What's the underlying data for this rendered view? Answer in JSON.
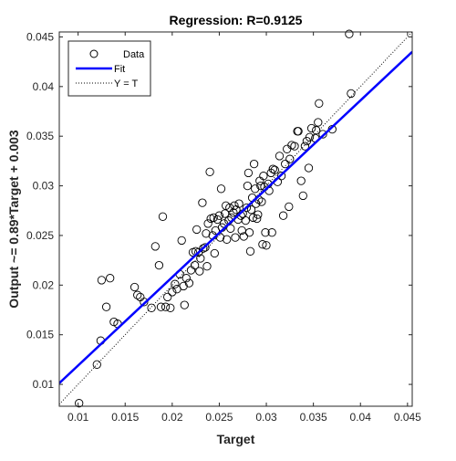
{
  "chart_data": {
    "type": "scatter",
    "title": "Regression: R=0.9125",
    "xlabel": "Target",
    "ylabel": "Output ~= 0.89*Target + 0.003",
    "xlim": [
      0.008,
      0.0455
    ],
    "ylim": [
      0.0078,
      0.0455
    ],
    "x_ticks": [
      0.01,
      0.015,
      0.02,
      0.025,
      0.03,
      0.035,
      0.04,
      0.045
    ],
    "x_tick_labels": [
      "0.01",
      "0.015",
      "0.02",
      "0.025",
      "0.03",
      "0.035",
      "0.04",
      "0.045"
    ],
    "y_ticks": [
      0.01,
      0.015,
      0.02,
      0.025,
      0.03,
      0.035,
      0.04,
      0.045
    ],
    "y_tick_labels": [
      "0.01",
      "0.015",
      "0.02",
      "0.025",
      "0.03",
      "0.035",
      "0.04",
      "0.045"
    ],
    "grid": false,
    "legend_position": "top-left",
    "legend": [
      {
        "label": "Data",
        "style": "circle",
        "color": "#000000"
      },
      {
        "label": "Fit",
        "style": "line",
        "color": "#0000ff"
      },
      {
        "label": "Y = T",
        "style": "dotted",
        "color": "#000000"
      }
    ],
    "fit": {
      "slope": 0.89,
      "intercept": 0.003,
      "color": "#0000ff"
    },
    "identity_color": "#000000",
    "points": [
      [
        0.0101,
        0.0081
      ],
      [
        0.012,
        0.012
      ],
      [
        0.0124,
        0.0144
      ],
      [
        0.0125,
        0.0205
      ],
      [
        0.013,
        0.0178
      ],
      [
        0.0134,
        0.0207
      ],
      [
        0.0138,
        0.0163
      ],
      [
        0.0142,
        0.0161
      ],
      [
        0.016,
        0.0198
      ],
      [
        0.0163,
        0.019
      ],
      [
        0.0166,
        0.0188
      ],
      [
        0.017,
        0.0183
      ],
      [
        0.0178,
        0.0177
      ],
      [
        0.0182,
        0.0239
      ],
      [
        0.0186,
        0.022
      ],
      [
        0.0188,
        0.0178
      ],
      [
        0.019,
        0.0269
      ],
      [
        0.0193,
        0.0178
      ],
      [
        0.0195,
        0.0188
      ],
      [
        0.0198,
        0.0177
      ],
      [
        0.02,
        0.0193
      ],
      [
        0.0203,
        0.0201
      ],
      [
        0.0205,
        0.0196
      ],
      [
        0.0208,
        0.0211
      ],
      [
        0.021,
        0.0245
      ],
      [
        0.0212,
        0.0199
      ],
      [
        0.0213,
        0.018
      ],
      [
        0.0215,
        0.0207
      ],
      [
        0.0218,
        0.0202
      ],
      [
        0.022,
        0.0215
      ],
      [
        0.0222,
        0.0233
      ],
      [
        0.0224,
        0.022
      ],
      [
        0.0225,
        0.0234
      ],
      [
        0.0226,
        0.0256
      ],
      [
        0.0228,
        0.0233
      ],
      [
        0.0229,
        0.0214
      ],
      [
        0.023,
        0.0227
      ],
      [
        0.0232,
        0.0283
      ],
      [
        0.0233,
        0.0237
      ],
      [
        0.0235,
        0.0238
      ],
      [
        0.0236,
        0.0252
      ],
      [
        0.0237,
        0.0219
      ],
      [
        0.0238,
        0.0262
      ],
      [
        0.024,
        0.0314
      ],
      [
        0.0241,
        0.0267
      ],
      [
        0.0243,
        0.025
      ],
      [
        0.0244,
        0.0268
      ],
      [
        0.0245,
        0.0232
      ],
      [
        0.0246,
        0.0255
      ],
      [
        0.0248,
        0.0266
      ],
      [
        0.025,
        0.027
      ],
      [
        0.0251,
        0.0248
      ],
      [
        0.0252,
        0.0297
      ],
      [
        0.0253,
        0.0258
      ],
      [
        0.0255,
        0.0262
      ],
      [
        0.0256,
        0.0272
      ],
      [
        0.0257,
        0.028
      ],
      [
        0.0258,
        0.0246
      ],
      [
        0.026,
        0.0265
      ],
      [
        0.0261,
        0.0278
      ],
      [
        0.0262,
        0.0257
      ],
      [
        0.0263,
        0.0268
      ],
      [
        0.0265,
        0.0273
      ],
      [
        0.0266,
        0.028
      ],
      [
        0.0267,
        0.0248
      ],
      [
        0.0268,
        0.0276
      ],
      [
        0.027,
        0.0266
      ],
      [
        0.0271,
        0.0282
      ],
      [
        0.0273,
        0.027
      ],
      [
        0.0274,
        0.0255
      ],
      [
        0.0275,
        0.0272
      ],
      [
        0.0276,
        0.0249
      ],
      [
        0.0278,
        0.0265
      ],
      [
        0.0279,
        0.0278
      ],
      [
        0.028,
        0.03
      ],
      [
        0.0281,
        0.0313
      ],
      [
        0.0282,
        0.0253
      ],
      [
        0.0283,
        0.0234
      ],
      [
        0.0284,
        0.0276
      ],
      [
        0.0285,
        0.0288
      ],
      [
        0.0286,
        0.0268
      ],
      [
        0.0287,
        0.0322
      ],
      [
        0.0288,
        0.0297
      ],
      [
        0.0289,
        0.0282
      ],
      [
        0.029,
        0.0267
      ],
      [
        0.0291,
        0.0271
      ],
      [
        0.0292,
        0.0286
      ],
      [
        0.0293,
        0.0305
      ],
      [
        0.0294,
        0.03
      ],
      [
        0.0295,
        0.0284
      ],
      [
        0.0296,
        0.0241
      ],
      [
        0.0297,
        0.031
      ],
      [
        0.0298,
        0.0299
      ],
      [
        0.0299,
        0.0253
      ],
      [
        0.03,
        0.024
      ],
      [
        0.0302,
        0.0302
      ],
      [
        0.0303,
        0.0295
      ],
      [
        0.0305,
        0.0313
      ],
      [
        0.0306,
        0.0253
      ],
      [
        0.0307,
        0.0317
      ],
      [
        0.0309,
        0.0316
      ],
      [
        0.0312,
        0.0304
      ],
      [
        0.0314,
        0.033
      ],
      [
        0.0316,
        0.031
      ],
      [
        0.0318,
        0.027
      ],
      [
        0.032,
        0.0322
      ],
      [
        0.0322,
        0.0337
      ],
      [
        0.0324,
        0.0279
      ],
      [
        0.0325,
        0.0327
      ],
      [
        0.0327,
        0.0341
      ],
      [
        0.033,
        0.034
      ],
      [
        0.0333,
        0.0355
      ],
      [
        0.0334,
        0.0355
      ],
      [
        0.0337,
        0.0305
      ],
      [
        0.0339,
        0.029
      ],
      [
        0.0341,
        0.034
      ],
      [
        0.0343,
        0.0345
      ],
      [
        0.0345,
        0.0318
      ],
      [
        0.0346,
        0.0349
      ],
      [
        0.0348,
        0.0358
      ],
      [
        0.0352,
        0.0348
      ],
      [
        0.0353,
        0.0356
      ],
      [
        0.0355,
        0.0364
      ],
      [
        0.0356,
        0.0383
      ],
      [
        0.036,
        0.0352
      ],
      [
        0.037,
        0.0357
      ],
      [
        0.0388,
        0.0453
      ],
      [
        0.039,
        0.0393
      ]
    ]
  }
}
